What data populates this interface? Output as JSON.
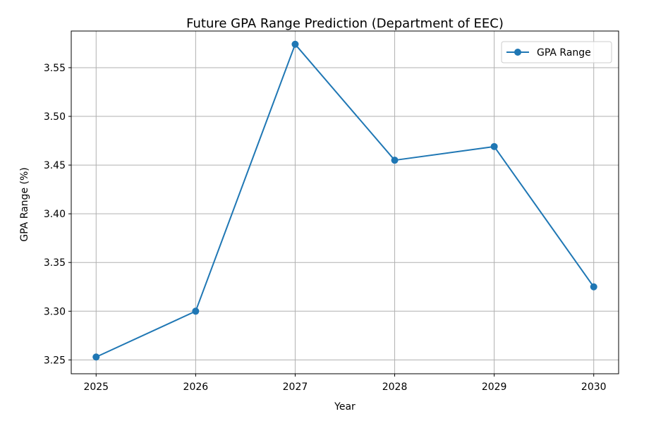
{
  "chart_data": {
    "type": "line",
    "title": "Future GPA Range Prediction (Department of EEC)",
    "xlabel": "Year",
    "ylabel": "GPA Range (%)",
    "categories": [
      "2025",
      "2026",
      "2027",
      "2028",
      "2029",
      "2030"
    ],
    "x": [
      2025,
      2026,
      2027,
      2028,
      2029,
      2030
    ],
    "series": [
      {
        "name": "GPA Range",
        "values": [
          3.253,
          3.3,
          3.574,
          3.455,
          3.469,
          3.325
        ],
        "color": "#1f77b4",
        "marker": "circle"
      }
    ],
    "xlim": [
      2024.75,
      2030.25
    ],
    "ylim": [
      3.2358,
      3.5876
    ],
    "y_ticks": [
      3.25,
      3.3,
      3.35,
      3.4,
      3.45,
      3.5,
      3.55
    ],
    "y_tick_labels": [
      "3.25",
      "3.30",
      "3.35",
      "3.40",
      "3.45",
      "3.50",
      "3.55"
    ],
    "grid": true,
    "legend_position": "top-right",
    "colors": {
      "grid": "#b0b0b0",
      "axes": "#000000"
    }
  }
}
